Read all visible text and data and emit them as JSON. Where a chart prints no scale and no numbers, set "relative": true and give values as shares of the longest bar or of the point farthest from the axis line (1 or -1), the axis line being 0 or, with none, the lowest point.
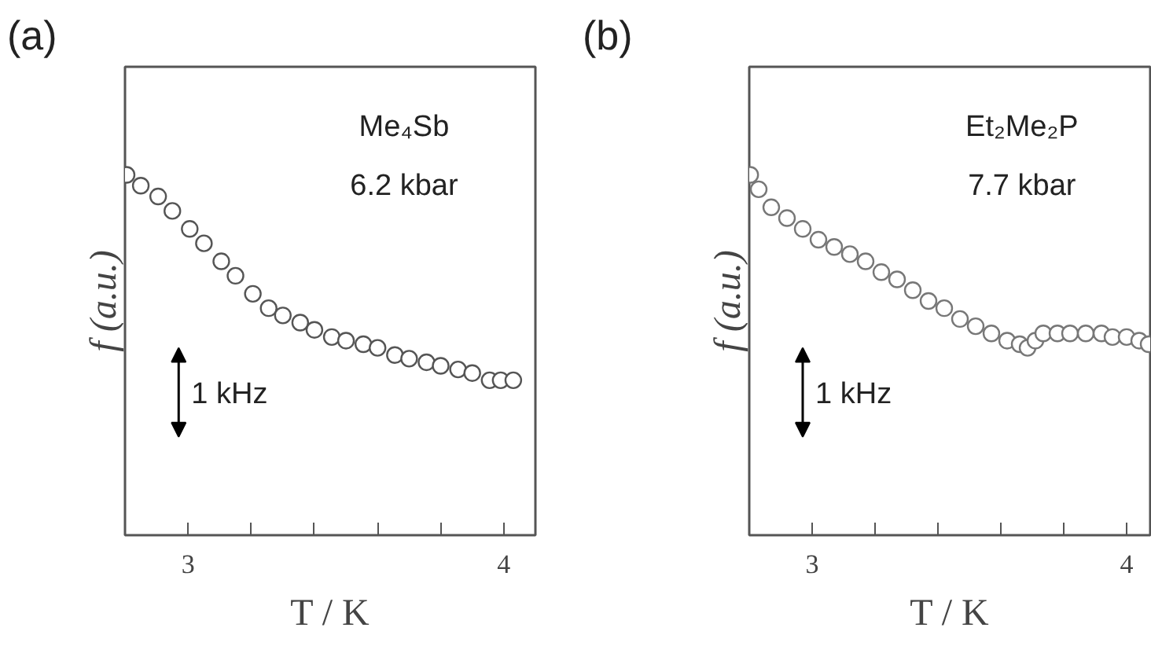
{
  "chart_data": [
    {
      "type": "scatter",
      "title": "(a)",
      "xlabel": "T / K",
      "ylabel": "f (a.u.)",
      "relative": true,
      "marker": "circle",
      "grid": false,
      "xlim": [
        2.8,
        4.1
      ],
      "xticks": [
        3,
        {
          "value": 3.2,
          "label": null
        },
        {
          "value": 3.4,
          "label": null
        },
        {
          "value": 3.6,
          "label": null
        },
        {
          "value": 3.8,
          "label": null
        },
        4
      ],
      "annotations": [
        "Me₄Sb",
        "6.2 kbar",
        "1 kHz"
      ],
      "series": [
        {
          "color": "#555555",
          "x": [
            2.805,
            2.85,
            2.905,
            2.95,
            3.005,
            3.05,
            3.105,
            3.15,
            3.205,
            3.255,
            3.3,
            3.355,
            3.4,
            3.455,
            3.5,
            3.555,
            3.6,
            3.655,
            3.7,
            3.755,
            3.8,
            3.855,
            3.9,
            3.955,
            3.99,
            4.03
          ],
          "values": [
            1,
            0.97,
            0.94,
            0.9,
            0.85,
            0.81,
            0.76,
            0.72,
            0.67,
            0.63,
            0.61,
            0.59,
            0.57,
            0.55,
            0.54,
            0.53,
            0.52,
            0.5,
            0.49,
            0.48,
            0.47,
            0.46,
            0.45,
            0.43,
            0.43,
            0.43
          ]
        }
      ]
    },
    {
      "type": "scatter",
      "title": "(b)",
      "xlabel": "T / K",
      "ylabel": "f (a.u.)",
      "relative": true,
      "marker": "circle",
      "grid": false,
      "xlim": [
        2.8,
        4.075
      ],
      "xticks": [
        3,
        {
          "value": 3.2,
          "label": null
        },
        {
          "value": 3.4,
          "label": null
        },
        {
          "value": 3.6,
          "label": null
        },
        {
          "value": 3.8,
          "label": null
        },
        4
      ],
      "annotations": [
        "Et₂Me₂P",
        "7.7 kbar",
        "1 kHz"
      ],
      "series": [
        {
          "color": "#777777",
          "x": [
            2.803,
            2.83,
            2.87,
            2.92,
            2.97,
            3.02,
            3.07,
            3.12,
            3.17,
            3.22,
            3.27,
            3.32,
            3.37,
            3.42,
            3.47,
            3.52,
            3.57,
            3.62,
            3.66,
            3.685,
            3.71,
            3.735,
            3.78,
            3.82,
            3.87,
            3.92,
            3.955,
            4.0,
            4.04,
            4.07
          ],
          "values": [
            1,
            0.96,
            0.91,
            0.88,
            0.85,
            0.82,
            0.8,
            0.78,
            0.76,
            0.73,
            0.71,
            0.68,
            0.65,
            0.63,
            0.6,
            0.58,
            0.56,
            0.54,
            0.53,
            0.52,
            0.54,
            0.56,
            0.56,
            0.56,
            0.56,
            0.56,
            0.55,
            0.55,
            0.54,
            0.53
          ]
        }
      ]
    }
  ]
}
